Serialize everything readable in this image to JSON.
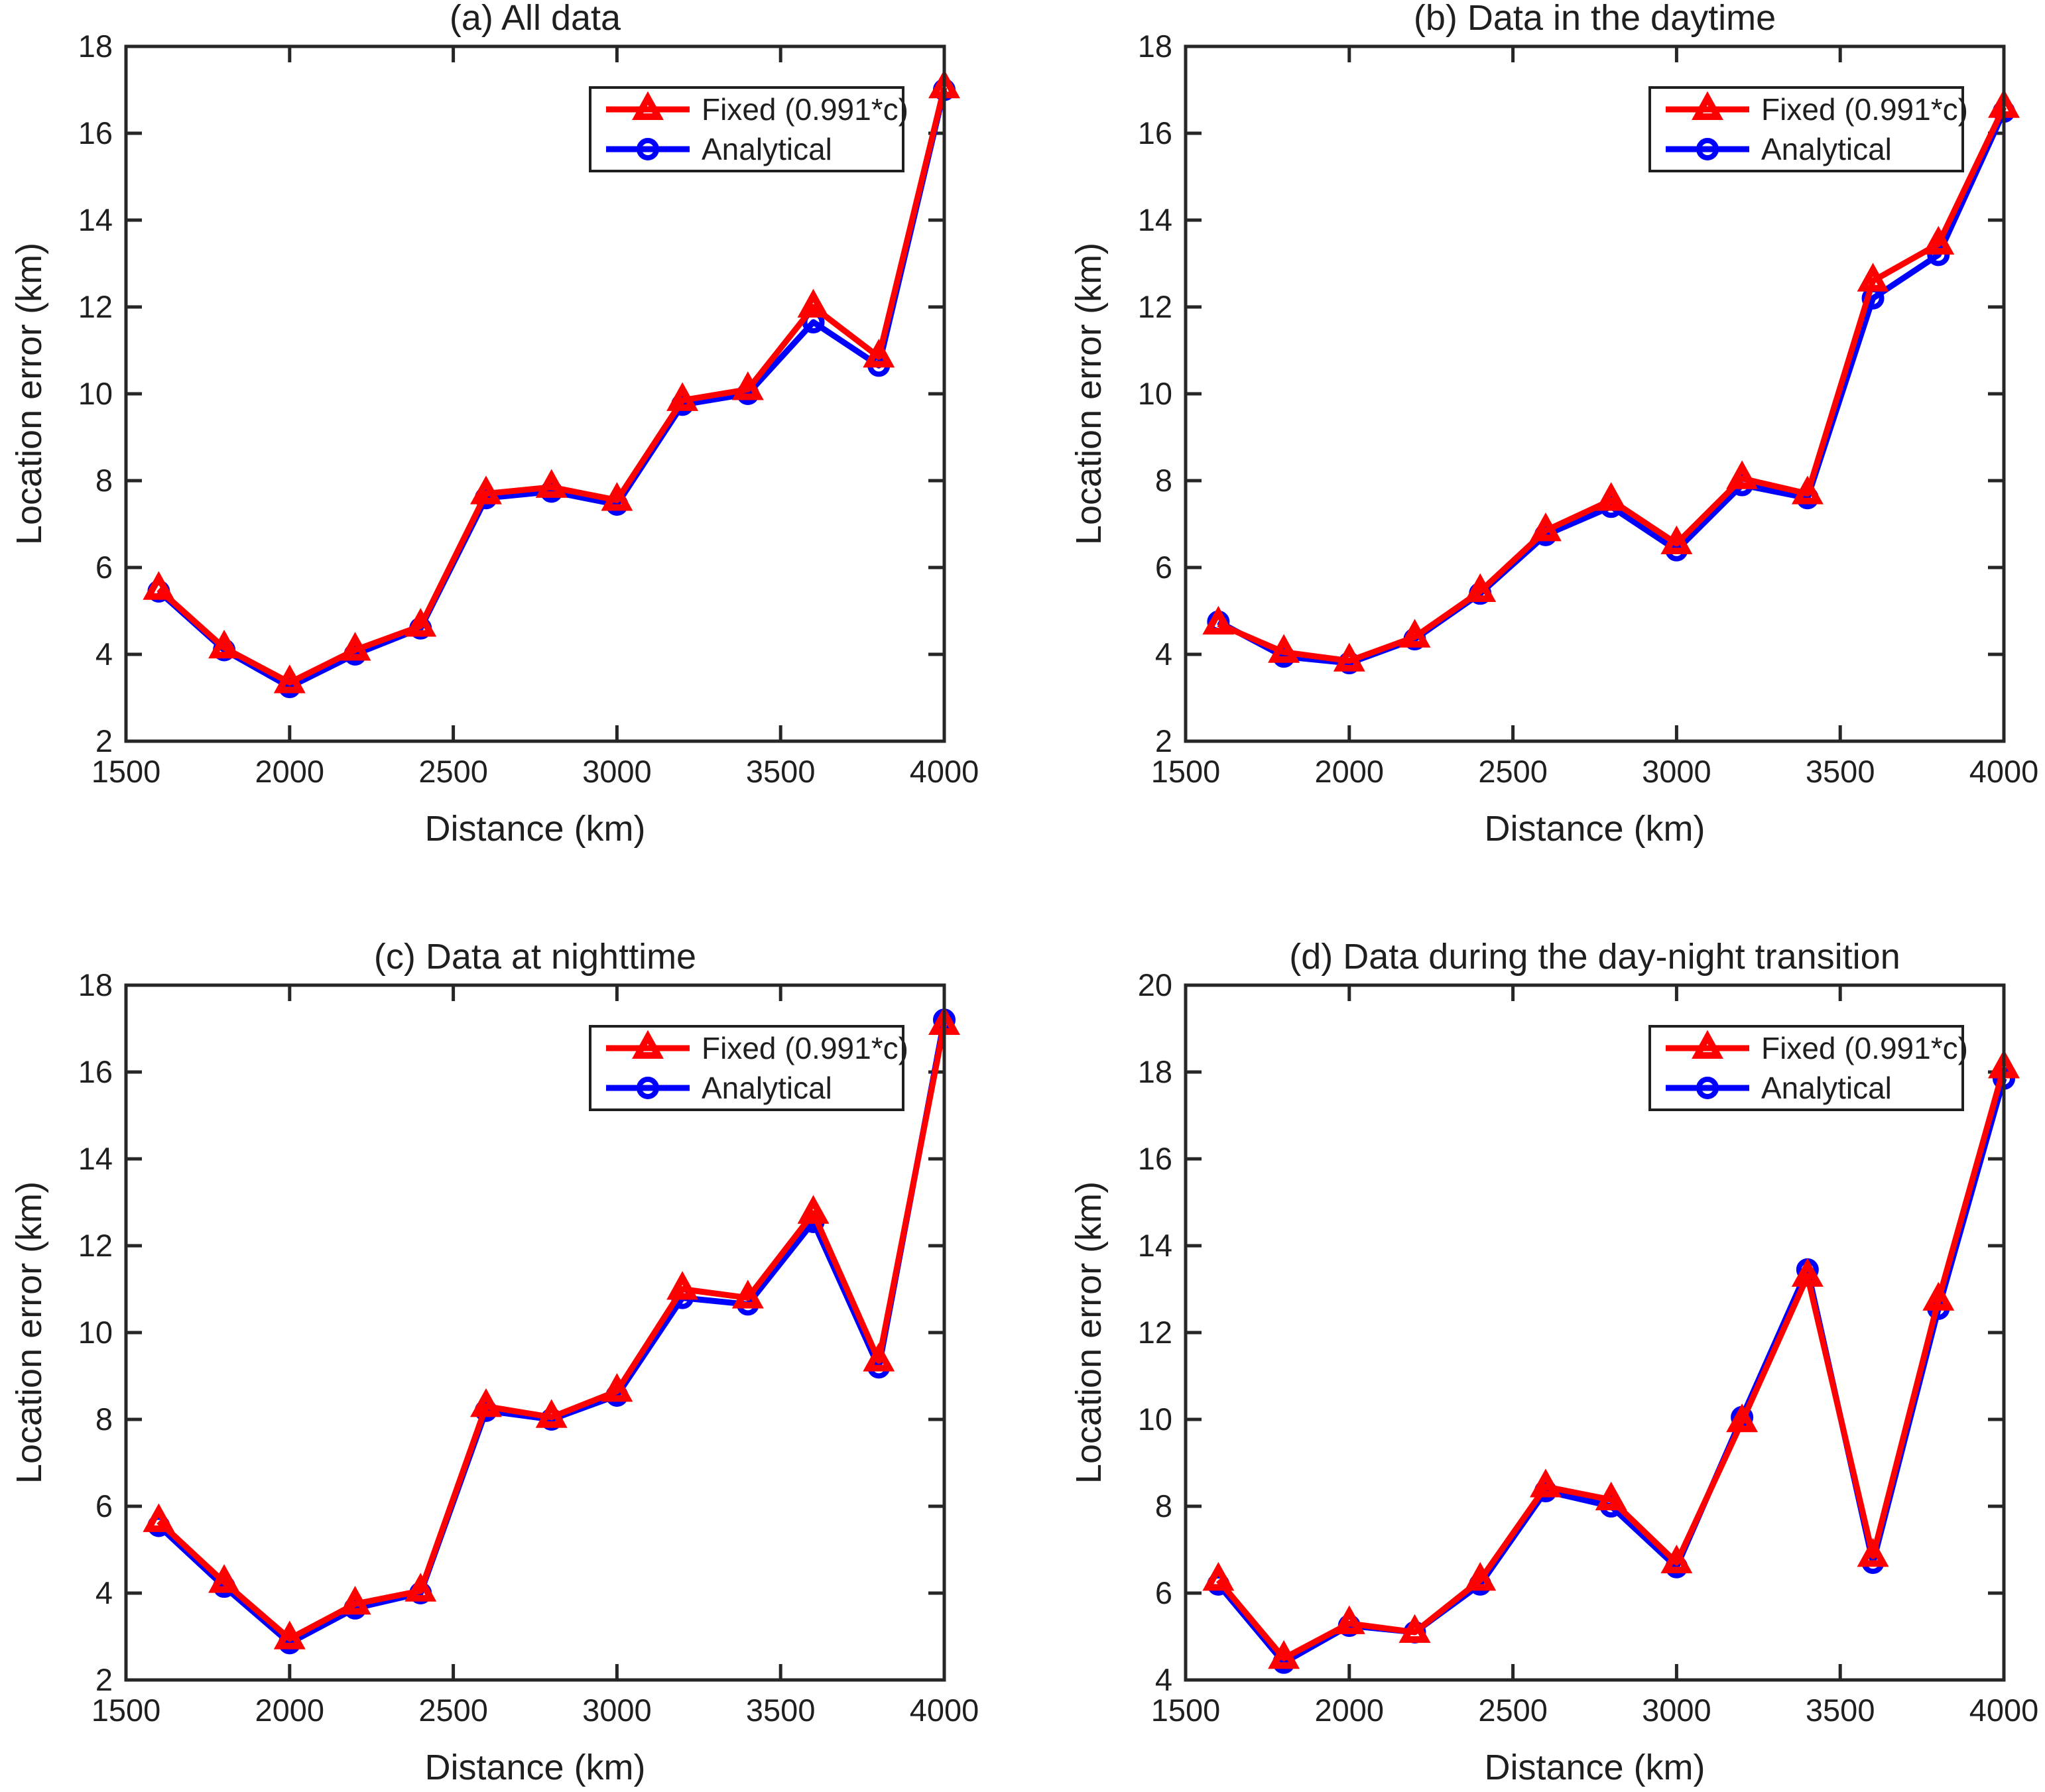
{
  "figure": {
    "background": "#ffffff",
    "text_color": "#1f1f1f",
    "axis_color": "#262626",
    "series_colors": {
      "analytical": "#0000ff",
      "fixed": "#ff0000"
    }
  },
  "chart_data": [
    {
      "type": "line",
      "title": "(a) All data",
      "xlabel": "Distance (km)",
      "ylabel": "Location error (km)",
      "xlim": [
        1500,
        4000
      ],
      "ylim": [
        2,
        18
      ],
      "xticks": [
        1500,
        2000,
        2500,
        3000,
        3500,
        4000
      ],
      "yticks": [
        2,
        4,
        6,
        8,
        10,
        12,
        14,
        16,
        18
      ],
      "grid": false,
      "legend_position": "top-right",
      "x": [
        1600,
        1800,
        2000,
        2200,
        2400,
        2600,
        2800,
        3000,
        3200,
        3400,
        3600,
        3800,
        4000
      ],
      "series": [
        {
          "name": "Analytical",
          "color": "#0000ff",
          "marker": "circle",
          "values": [
            5.45,
            4.1,
            3.25,
            4.0,
            4.6,
            7.6,
            7.75,
            7.45,
            9.75,
            10.0,
            11.65,
            10.65,
            17.0
          ]
        },
        {
          "name": "Fixed (0.991*c)",
          "color": "#ff0000",
          "marker": "triangle",
          "values": [
            5.5,
            4.15,
            3.35,
            4.1,
            4.65,
            7.7,
            7.85,
            7.55,
            9.85,
            10.1,
            12.0,
            10.85,
            17.05
          ]
        }
      ]
    },
    {
      "type": "line",
      "title": "(b) Data in the daytime",
      "xlabel": "Distance (km)",
      "ylabel": "Location error (km)",
      "xlim": [
        1500,
        4000
      ],
      "ylim": [
        2,
        18
      ],
      "xticks": [
        1500,
        2000,
        2500,
        3000,
        3500,
        4000
      ],
      "yticks": [
        2,
        4,
        6,
        8,
        10,
        12,
        14,
        16,
        18
      ],
      "grid": false,
      "legend_position": "top-right",
      "x": [
        1600,
        1800,
        2000,
        2200,
        2400,
        2600,
        2800,
        3000,
        3200,
        3400,
        3600,
        3800,
        4000
      ],
      "series": [
        {
          "name": "Analytical",
          "color": "#0000ff",
          "marker": "circle",
          "values": [
            4.75,
            3.95,
            3.8,
            4.35,
            5.4,
            6.75,
            7.4,
            6.4,
            7.9,
            7.6,
            12.2,
            13.2,
            16.5
          ]
        },
        {
          "name": "Fixed (0.991*c)",
          "color": "#ff0000",
          "marker": "triangle",
          "values": [
            4.7,
            4.05,
            3.85,
            4.4,
            5.45,
            6.85,
            7.55,
            6.55,
            8.05,
            7.7,
            12.6,
            13.45,
            16.6
          ]
        }
      ]
    },
    {
      "type": "line",
      "title": "(c) Data at nighttime",
      "xlabel": "Distance (km)",
      "ylabel": "Location error (km)",
      "xlim": [
        1500,
        4000
      ],
      "ylim": [
        2,
        18
      ],
      "xticks": [
        1500,
        2000,
        2500,
        3000,
        3500,
        4000
      ],
      "yticks": [
        2,
        4,
        6,
        8,
        10,
        12,
        14,
        16,
        18
      ],
      "grid": false,
      "legend_position": "top-right",
      "x": [
        1600,
        1800,
        2000,
        2200,
        2400,
        2600,
        2800,
        3000,
        3200,
        3400,
        3600,
        3800,
        4000
      ],
      "series": [
        {
          "name": "Analytical",
          "color": "#0000ff",
          "marker": "circle",
          "values": [
            5.55,
            4.15,
            2.85,
            3.65,
            4.0,
            8.2,
            8.0,
            8.55,
            10.8,
            10.65,
            12.55,
            9.2,
            17.2
          ]
        },
        {
          "name": "Fixed (0.991*c)",
          "color": "#ff0000",
          "marker": "triangle",
          "values": [
            5.65,
            4.25,
            2.95,
            3.75,
            4.05,
            8.3,
            8.05,
            8.65,
            11.0,
            10.8,
            12.75,
            9.35,
            17.1
          ]
        }
      ]
    },
    {
      "type": "line",
      "title": "(d) Data during the day-night transition",
      "xlabel": "Distance (km)",
      "ylabel": "Location error (km)",
      "xlim": [
        1500,
        4000
      ],
      "ylim": [
        4,
        20
      ],
      "xticks": [
        1500,
        2000,
        2500,
        3000,
        3500,
        4000
      ],
      "yticks": [
        4,
        6,
        8,
        10,
        12,
        14,
        16,
        18,
        20
      ],
      "grid": false,
      "legend_position": "top-right",
      "x": [
        1600,
        1800,
        2000,
        2200,
        2400,
        2600,
        2800,
        3000,
        3200,
        3400,
        3600,
        3800,
        4000
      ],
      "series": [
        {
          "name": "Analytical",
          "color": "#0000ff",
          "marker": "circle",
          "values": [
            6.2,
            4.4,
            5.25,
            5.1,
            6.2,
            8.35,
            8.0,
            6.6,
            10.05,
            13.45,
            6.7,
            12.55,
            17.85
          ]
        },
        {
          "name": "Fixed (0.991*c)",
          "color": "#ff0000",
          "marker": "triangle",
          "values": [
            6.3,
            4.5,
            5.3,
            5.1,
            6.3,
            8.45,
            8.15,
            6.7,
            9.95,
            13.3,
            6.85,
            12.75,
            18.1
          ]
        }
      ]
    }
  ]
}
